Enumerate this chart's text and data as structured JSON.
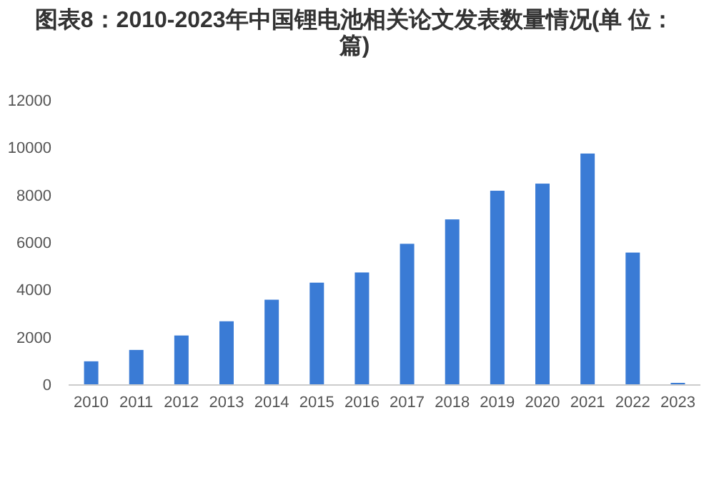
{
  "chart_data": {
    "type": "bar",
    "title": "图表8：2010-2023年中国锂电池相关论文发表数量情况(单 位：篇)",
    "categories": [
      "2010",
      "2011",
      "2012",
      "2013",
      "2014",
      "2015",
      "2016",
      "2017",
      "2018",
      "2019",
      "2020",
      "2021",
      "2022",
      "2023"
    ],
    "values": [
      970,
      1450,
      2060,
      2660,
      3570,
      4290,
      4720,
      5930,
      6960,
      8170,
      8470,
      9740,
      5560,
      60
    ],
    "color": "#3a7bd5",
    "ylim": [
      0,
      12000
    ],
    "yticks": [
      0,
      2000,
      4000,
      6000,
      8000,
      10000,
      12000
    ],
    "grid": false
  }
}
